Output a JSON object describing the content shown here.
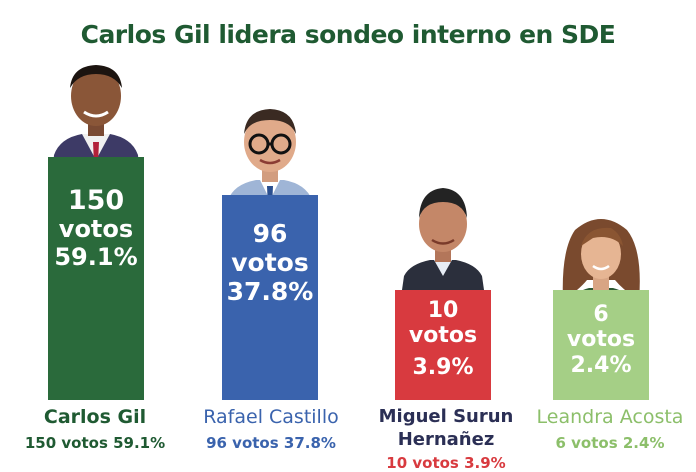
{
  "title": "Carlos Gil lidera sondeo interno en SDE",
  "colors": {
    "title": "#1f5a32",
    "carlos": "#2a6a3b",
    "rafael": "#3a63ad",
    "miguel": "#d83a3f",
    "leandra": "#a5cf86"
  },
  "candidates": [
    {
      "name": "Carlos Gil",
      "votes_line": "150",
      "votos_word": "votos",
      "pct": "59.1%",
      "summary": "150 votos 59.1%"
    },
    {
      "name": "Rafael Castillo",
      "votes_line": "96",
      "votos_word": "votos",
      "pct": "37.8%",
      "summary": "96 votos 37.8%"
    },
    {
      "name_line1": "Miguel Surun",
      "name_line2": "Hernañez",
      "votes_line": "10",
      "votos_word": "votos",
      "pct": "3.9%",
      "summary": "10 votos 3.9%"
    },
    {
      "name": "Leandra Acosta",
      "votes_line": "6",
      "votos_word": "votos",
      "pct": "2.4%",
      "summary": "6 votos 2.4%"
    }
  ],
  "chart_data": {
    "type": "bar",
    "title": "Carlos Gil lidera sondeo interno en SDE",
    "categories": [
      "Carlos Gil",
      "Rafael Castillo",
      "Miguel Surun Hernañez",
      "Leandra Acosta"
    ],
    "series": [
      {
        "name": "votos",
        "values": [
          150,
          96,
          10,
          6
        ]
      }
    ],
    "percentages": [
      59.1,
      37.8,
      3.9,
      2.4
    ],
    "bar_colors": [
      "#2a6a3b",
      "#3a63ad",
      "#d83a3f",
      "#a5cf86"
    ]
  }
}
